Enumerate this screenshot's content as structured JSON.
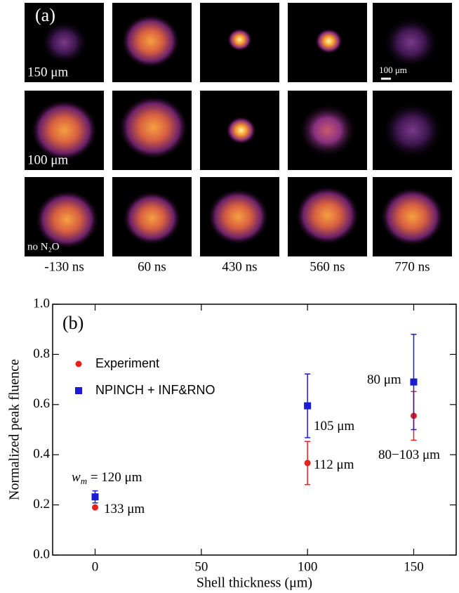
{
  "panel_a": {
    "label": "(a)",
    "row_labels": [
      "150 μm",
      "100 μm",
      "no N₂O"
    ],
    "column_labels": [
      "-130 ns",
      "60 ns",
      "430 ns",
      "560 ns",
      "770 ns"
    ],
    "scale_bar": "100 μm"
  },
  "chart_data": {
    "type": "scatter",
    "panel_label": "(b)",
    "x_label": "Shell thickness (μm)",
    "y_label": "Normalized peak fluence",
    "x": [
      0,
      100,
      150
    ],
    "series": [
      {
        "name": "Experiment",
        "color": "#e8201c",
        "marker": "circle",
        "values": [
          0.19,
          0.367,
          0.555
        ],
        "errors": [
          0,
          0.086,
          0.097
        ]
      },
      {
        "name": "NPINCH + INF&RNO",
        "color": "#1a1ad8",
        "marker": "square",
        "values": [
          0.232,
          0.595,
          0.69
        ],
        "errors": [
          0.024,
          0.127,
          0.19
        ]
      }
    ],
    "xlim": [
      -20,
      170
    ],
    "ylim": [
      0,
      1
    ],
    "xticks": [
      0,
      50,
      100,
      150
    ],
    "yticks": [
      {
        "value": 0,
        "label": "0.0"
      },
      0.2,
      0.4,
      0.6,
      0.8,
      {
        "value": 1,
        "label": "1.0"
      }
    ],
    "legend": "upper left",
    "annotations": [
      {
        "italic": "w",
        "sub": "m",
        "text": " = 120 μm"
      },
      {
        "text": "133 μm"
      },
      {
        "text": "105 μm"
      },
      {
        "text": "112 μm"
      },
      {
        "text": "80 μm"
      },
      {
        "text": "80−103 μm"
      }
    ]
  }
}
